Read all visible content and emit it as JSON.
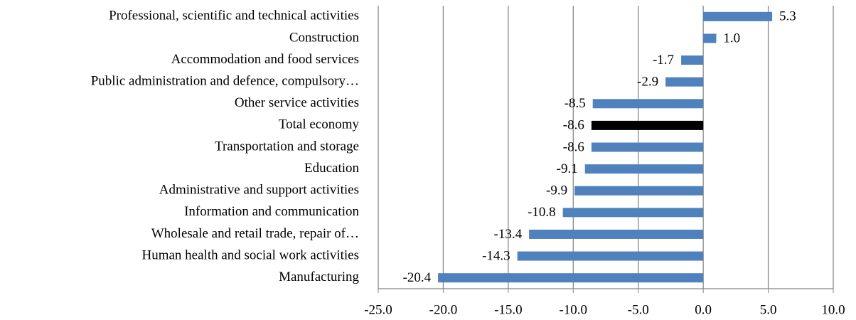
{
  "chart_data": {
    "type": "hbar",
    "categories": [
      "Professional, scientific and technical activities",
      "Construction",
      "Accommodation and food services",
      "Public administration and defence, compulsory…",
      "Other service activities",
      "Total economy",
      "Transportation and storage",
      "Education",
      "Administrative and support activities",
      "Information and communication",
      "Wholesale and retail trade, repair of…",
      "Human health and social work activities",
      "Manufacturing"
    ],
    "values": [
      5.3,
      1.0,
      -1.7,
      -2.9,
      -8.5,
      -8.6,
      -8.6,
      -9.1,
      -9.9,
      -10.8,
      -13.4,
      -14.3,
      -20.4
    ],
    "value_labels": [
      "5.3",
      "1.0",
      "-1.7",
      "-2.9",
      "-8.5",
      "-8.6",
      "-8.6",
      "-9.1",
      "-9.9",
      "-10.8",
      "-13.4",
      "-14.3",
      "-20.4"
    ],
    "colors": [
      "#4f81bd",
      "#4f81bd",
      "#4f81bd",
      "#4f81bd",
      "#4f81bd",
      "#000000",
      "#4f81bd",
      "#4f81bd",
      "#4f81bd",
      "#4f81bd",
      "#4f81bd",
      "#4f81bd",
      "#4f81bd"
    ],
    "xlim": [
      -25,
      10
    ],
    "xticks": [
      {
        "value": -25,
        "label": "-25.0"
      },
      {
        "value": -20,
        "label": "-20.0"
      },
      {
        "value": -15,
        "label": "-15.0"
      },
      {
        "value": -10,
        "label": "-10.0"
      },
      {
        "value": -5,
        "label": "-5.0"
      },
      {
        "value": 0,
        "label": "0.0"
      },
      {
        "value": 5,
        "label": "5.0"
      },
      {
        "value": 10,
        "label": "10.0"
      }
    ],
    "grid": true
  }
}
